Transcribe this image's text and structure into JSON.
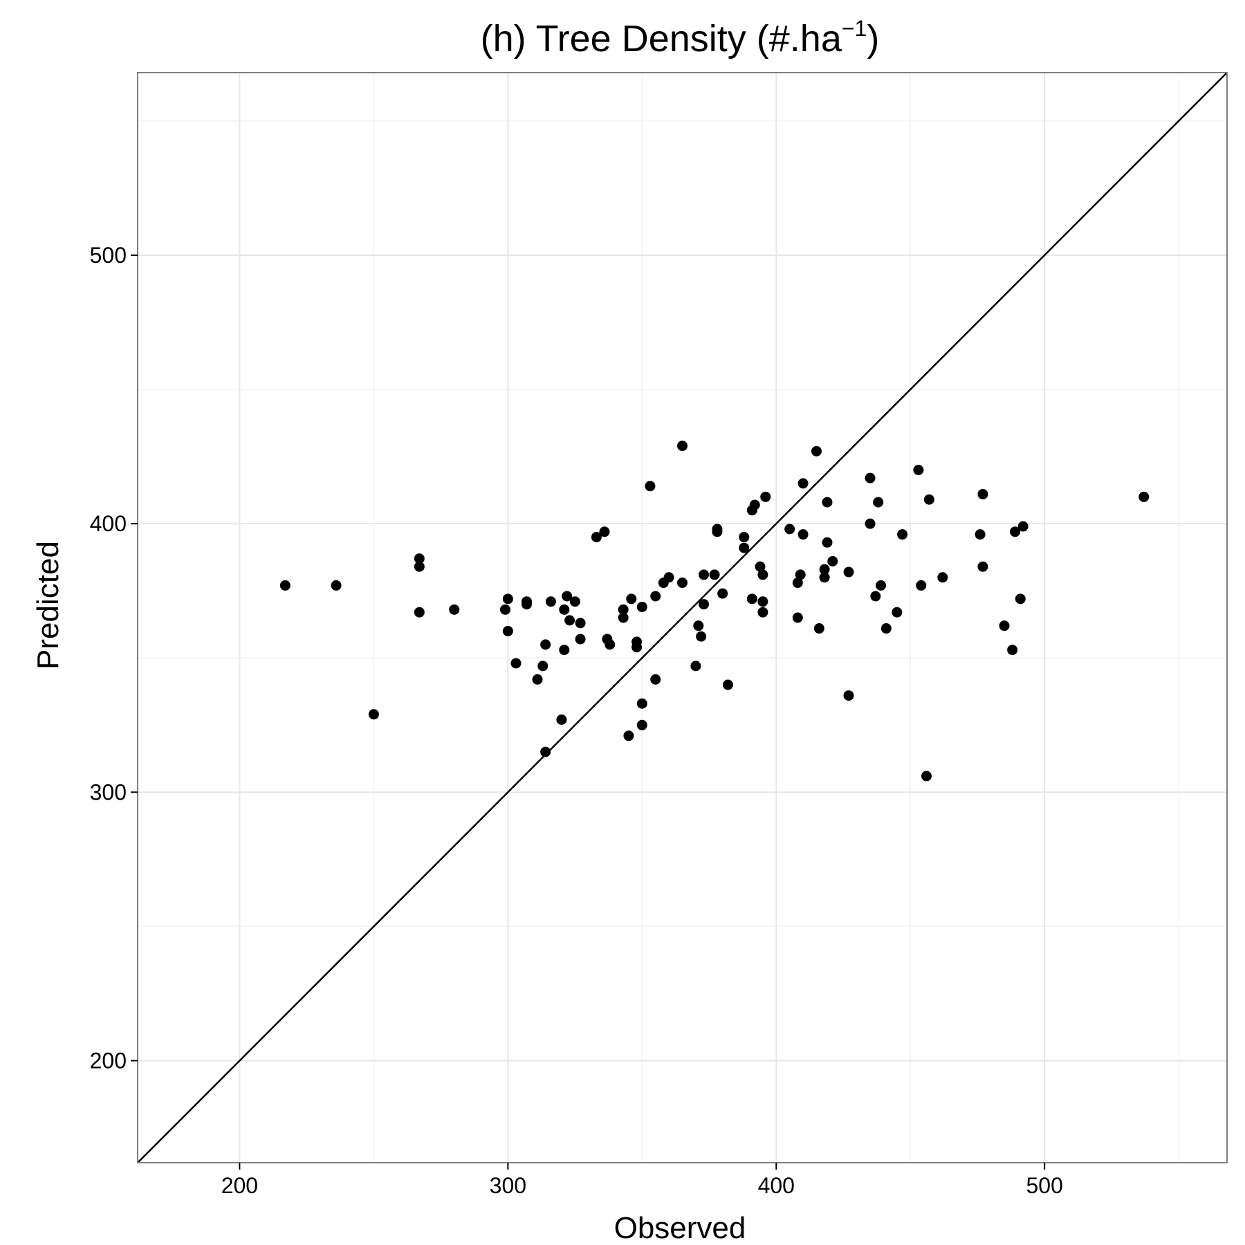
{
  "chart_data": {
    "type": "scatter",
    "title": {
      "main": "(h) Tree Density (#.ha",
      "superscript": "−1",
      "close": ")"
    },
    "xlabel": "Observed",
    "ylabel": "Predicted",
    "xlim": [
      162,
      568
    ],
    "ylim": [
      162,
      568
    ],
    "x_ticks": [
      200,
      300,
      400,
      500
    ],
    "y_ticks": [
      200,
      300,
      400,
      500
    ],
    "grid": true,
    "reference_line": {
      "slope": 1,
      "intercept": 0
    },
    "series": [
      {
        "points": [
          [
            217,
            377
          ],
          [
            236,
            377
          ],
          [
            250,
            329
          ],
          [
            267,
            387
          ],
          [
            267,
            384
          ],
          [
            267,
            367
          ],
          [
            280,
            368
          ],
          [
            299,
            368
          ],
          [
            300,
            360
          ],
          [
            300,
            372
          ],
          [
            303,
            348
          ],
          [
            307,
            370
          ],
          [
            307,
            371
          ],
          [
            311,
            342
          ],
          [
            313,
            347
          ],
          [
            314,
            355
          ],
          [
            314,
            315
          ],
          [
            316,
            371
          ],
          [
            320,
            327
          ],
          [
            321,
            368
          ],
          [
            321,
            353
          ],
          [
            322,
            373
          ],
          [
            323,
            364
          ],
          [
            325,
            371
          ],
          [
            327,
            363
          ],
          [
            327,
            357
          ],
          [
            333,
            395
          ],
          [
            336,
            397
          ],
          [
            337,
            357
          ],
          [
            338,
            355
          ],
          [
            343,
            368
          ],
          [
            343,
            365
          ],
          [
            345,
            321
          ],
          [
            346,
            372
          ],
          [
            348,
            356
          ],
          [
            348,
            354
          ],
          [
            350,
            369
          ],
          [
            350,
            325
          ],
          [
            350,
            333
          ],
          [
            353,
            414
          ],
          [
            355,
            373
          ],
          [
            355,
            342
          ],
          [
            358,
            378
          ],
          [
            360,
            380
          ],
          [
            365,
            429
          ],
          [
            365,
            378
          ],
          [
            370,
            347
          ],
          [
            371,
            362
          ],
          [
            372,
            358
          ],
          [
            373,
            370
          ],
          [
            373,
            381
          ],
          [
            377,
            381
          ],
          [
            378,
            398
          ],
          [
            378,
            397
          ],
          [
            380,
            374
          ],
          [
            382,
            340
          ],
          [
            388,
            395
          ],
          [
            388,
            391
          ],
          [
            391,
            405
          ],
          [
            391,
            372
          ],
          [
            392,
            407
          ],
          [
            394,
            384
          ],
          [
            395,
            371
          ],
          [
            395,
            367
          ],
          [
            395,
            381
          ],
          [
            396,
            410
          ],
          [
            405,
            398
          ],
          [
            408,
            378
          ],
          [
            408,
            365
          ],
          [
            409,
            381
          ],
          [
            410,
            396
          ],
          [
            410,
            415
          ],
          [
            415,
            427
          ],
          [
            416,
            361
          ],
          [
            418,
            380
          ],
          [
            418,
            383
          ],
          [
            419,
            408
          ],
          [
            419,
            393
          ],
          [
            421,
            386
          ],
          [
            427,
            336
          ],
          [
            427,
            382
          ],
          [
            435,
            417
          ],
          [
            435,
            400
          ],
          [
            437,
            373
          ],
          [
            438,
            408
          ],
          [
            439,
            377
          ],
          [
            441,
            361
          ],
          [
            445,
            367
          ],
          [
            447,
            396
          ],
          [
            453,
            420
          ],
          [
            454,
            377
          ],
          [
            456,
            306
          ],
          [
            457,
            409
          ],
          [
            462,
            380
          ],
          [
            476,
            396
          ],
          [
            477,
            411
          ],
          [
            477,
            384
          ],
          [
            485,
            362
          ],
          [
            488,
            353
          ],
          [
            489,
            397
          ],
          [
            491,
            372
          ],
          [
            492,
            399
          ],
          [
            537,
            410
          ]
        ]
      }
    ]
  }
}
